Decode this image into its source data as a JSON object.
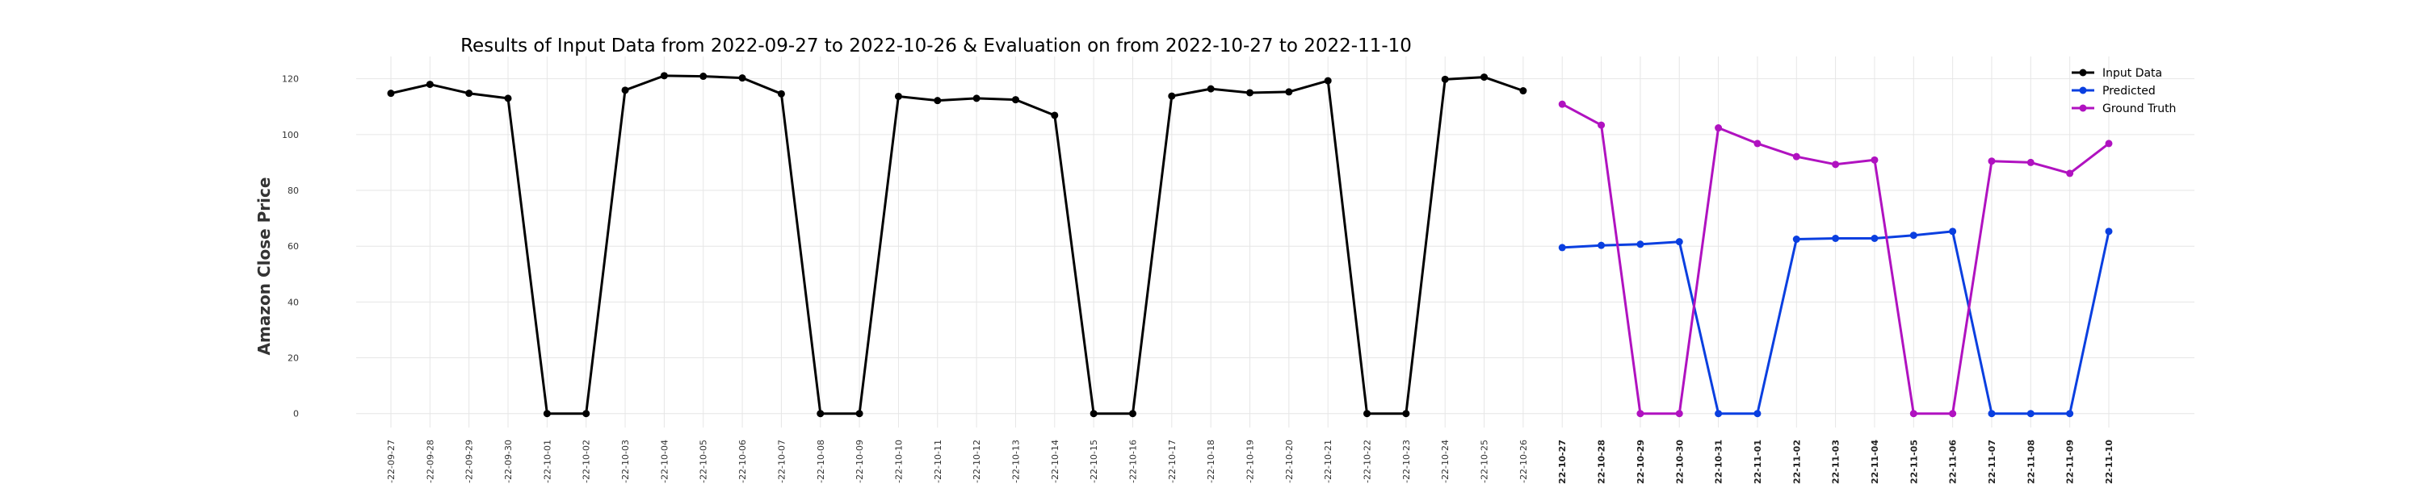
{
  "chart_data": {
    "type": "line",
    "title": "Results of Input Data from 2022-09-27 to 2022-10-26 & Evaluation on from 2022-10-27 to 2022-11-10",
    "xlabel": "",
    "ylabel": "Amazon Close Price",
    "ylim": [
      -5,
      128
    ],
    "yticks": [
      0,
      20,
      40,
      60,
      80,
      100,
      120
    ],
    "grid": true,
    "legend_position": "top-right",
    "x": [
      "2022-09-27",
      "2022-09-28",
      "2022-09-29",
      "2022-09-30",
      "2022-10-01",
      "2022-10-02",
      "2022-10-03",
      "2022-10-04",
      "2022-10-05",
      "2022-10-06",
      "2022-10-07",
      "2022-10-08",
      "2022-10-09",
      "2022-10-10",
      "2022-10-11",
      "2022-10-12",
      "2022-10-13",
      "2022-10-14",
      "2022-10-15",
      "2022-10-16",
      "2022-10-17",
      "2022-10-18",
      "2022-10-19",
      "2022-10-20",
      "2022-10-21",
      "2022-10-22",
      "2022-10-23",
      "2022-10-24",
      "2022-10-25",
      "2022-10-26",
      "2022-10-27",
      "2022-10-28",
      "2022-10-29",
      "2022-10-30",
      "2022-10-31",
      "2022-11-01",
      "2022-11-02",
      "2022-11-03",
      "2022-11-04",
      "2022-11-05",
      "2022-11-06",
      "2022-11-07",
      "2022-11-08",
      "2022-11-09",
      "2022-11-10"
    ],
    "tick_labels": [
      "-22-09-27",
      "-22-09-28",
      "-22-09-29",
      "-22-09-30",
      "-22-10-01",
      "-22-10-02",
      "-22-10-03",
      "-22-10-04",
      "-22-10-05",
      "-22-10-06",
      "-22-10-07",
      "-22-10-08",
      "-22-10-09",
      "-22-10-10",
      "-22-10-11",
      "-22-10-12",
      "-22-10-13",
      "-22-10-14",
      "-22-10-15",
      "-22-10-16",
      "-22-10-17",
      "-22-10-18",
      "-22-10-19",
      "-22-10-20",
      "-22-10-21",
      "-22-10-22",
      "-22-10-23",
      "-22-10-24",
      "-22-10-25",
      "-22-10-26",
      "-22-10-27",
      "-22-10-28",
      "-22-10-29",
      "-22-10-30",
      "-22-10-31",
      "-22-11-01",
      "-22-11-02",
      "-22-11-03",
      "-22-11-04",
      "-22-11-05",
      "-22-11-06",
      "-22-11-07",
      "-22-11-08",
      "-22-11-09",
      "-22-11-10"
    ],
    "series": [
      {
        "name": "Input Data",
        "color": "#000000",
        "x": [
          "2022-09-27",
          "2022-09-28",
          "2022-09-29",
          "2022-09-30",
          "2022-10-01",
          "2022-10-02",
          "2022-10-03",
          "2022-10-04",
          "2022-10-05",
          "2022-10-06",
          "2022-10-07",
          "2022-10-08",
          "2022-10-09",
          "2022-10-10",
          "2022-10-11",
          "2022-10-12",
          "2022-10-13",
          "2022-10-14",
          "2022-10-15",
          "2022-10-16",
          "2022-10-17",
          "2022-10-18",
          "2022-10-19",
          "2022-10-20",
          "2022-10-21",
          "2022-10-22",
          "2022-10-23",
          "2022-10-24",
          "2022-10-25",
          "2022-10-26"
        ],
        "values": [
          114.8,
          118.0,
          114.8,
          113.0,
          0,
          0,
          115.9,
          121.1,
          120.9,
          120.3,
          114.6,
          0,
          0,
          113.7,
          112.2,
          113.0,
          112.5,
          106.9,
          0,
          0,
          113.8,
          116.4,
          115.0,
          115.3,
          119.3,
          0,
          0,
          119.8,
          120.6,
          115.7
        ]
      },
      {
        "name": "Predicted",
        "color": "#0a3fe0",
        "x": [
          "2022-10-27",
          "2022-10-28",
          "2022-10-29",
          "2022-10-30",
          "2022-10-31",
          "2022-11-01",
          "2022-11-02",
          "2022-11-03",
          "2022-11-04",
          "2022-11-05",
          "2022-11-06",
          "2022-11-07",
          "2022-11-08",
          "2022-11-09",
          "2022-11-10"
        ],
        "values": [
          59.5,
          60.3,
          60.7,
          61.6,
          0,
          0,
          62.5,
          62.8,
          62.8,
          63.9,
          65.3,
          0,
          0,
          0,
          65.3
        ]
      },
      {
        "name": "Ground Truth",
        "color": "#b012c0",
        "x": [
          "2022-10-27",
          "2022-10-28",
          "2022-10-29",
          "2022-10-30",
          "2022-10-31",
          "2022-11-01",
          "2022-11-02",
          "2022-11-03",
          "2022-11-04",
          "2022-11-05",
          "2022-11-06",
          "2022-11-07",
          "2022-11-08",
          "2022-11-09",
          "2022-11-10"
        ],
        "values": [
          110.9,
          103.4,
          0,
          0,
          102.4,
          96.8,
          92.1,
          89.3,
          90.9,
          0,
          0,
          90.5,
          90.0,
          86.1,
          96.8
        ]
      }
    ]
  }
}
